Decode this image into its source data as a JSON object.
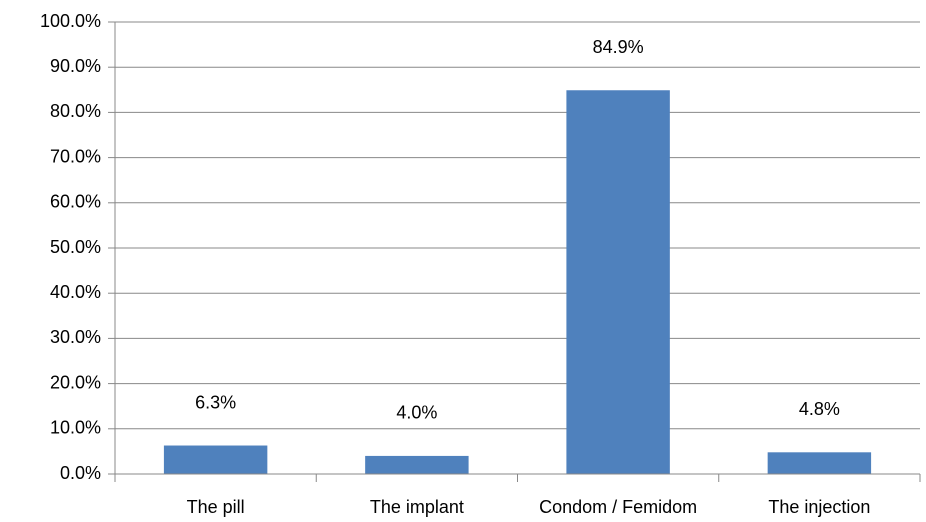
{
  "chart_data": {
    "type": "bar",
    "categories": [
      "The pill",
      "The implant",
      "Condom / Femidom",
      "The injection"
    ],
    "values": [
      6.3,
      4.0,
      84.9,
      4.8
    ],
    "value_labels": [
      "6.3%",
      "4.0%",
      "84.9%",
      "4.8%"
    ],
    "color": "#4f81bd",
    "ylim": [
      0,
      100
    ],
    "yticks": [
      {
        "value": 0,
        "label": "0.0%"
      },
      {
        "value": 10,
        "label": "10.0%"
      },
      {
        "value": 20,
        "label": "20.0%"
      },
      {
        "value": 30,
        "label": "30.0%"
      },
      {
        "value": 40,
        "label": "40.0%"
      },
      {
        "value": 50,
        "label": "50.0%"
      },
      {
        "value": 60,
        "label": "60.0%"
      },
      {
        "value": 70,
        "label": "70.0%"
      },
      {
        "value": 80,
        "label": "80.0%"
      },
      {
        "value": 90,
        "label": "90.0%"
      },
      {
        "value": 100,
        "label": "100.0%"
      }
    ],
    "grid": true
  }
}
